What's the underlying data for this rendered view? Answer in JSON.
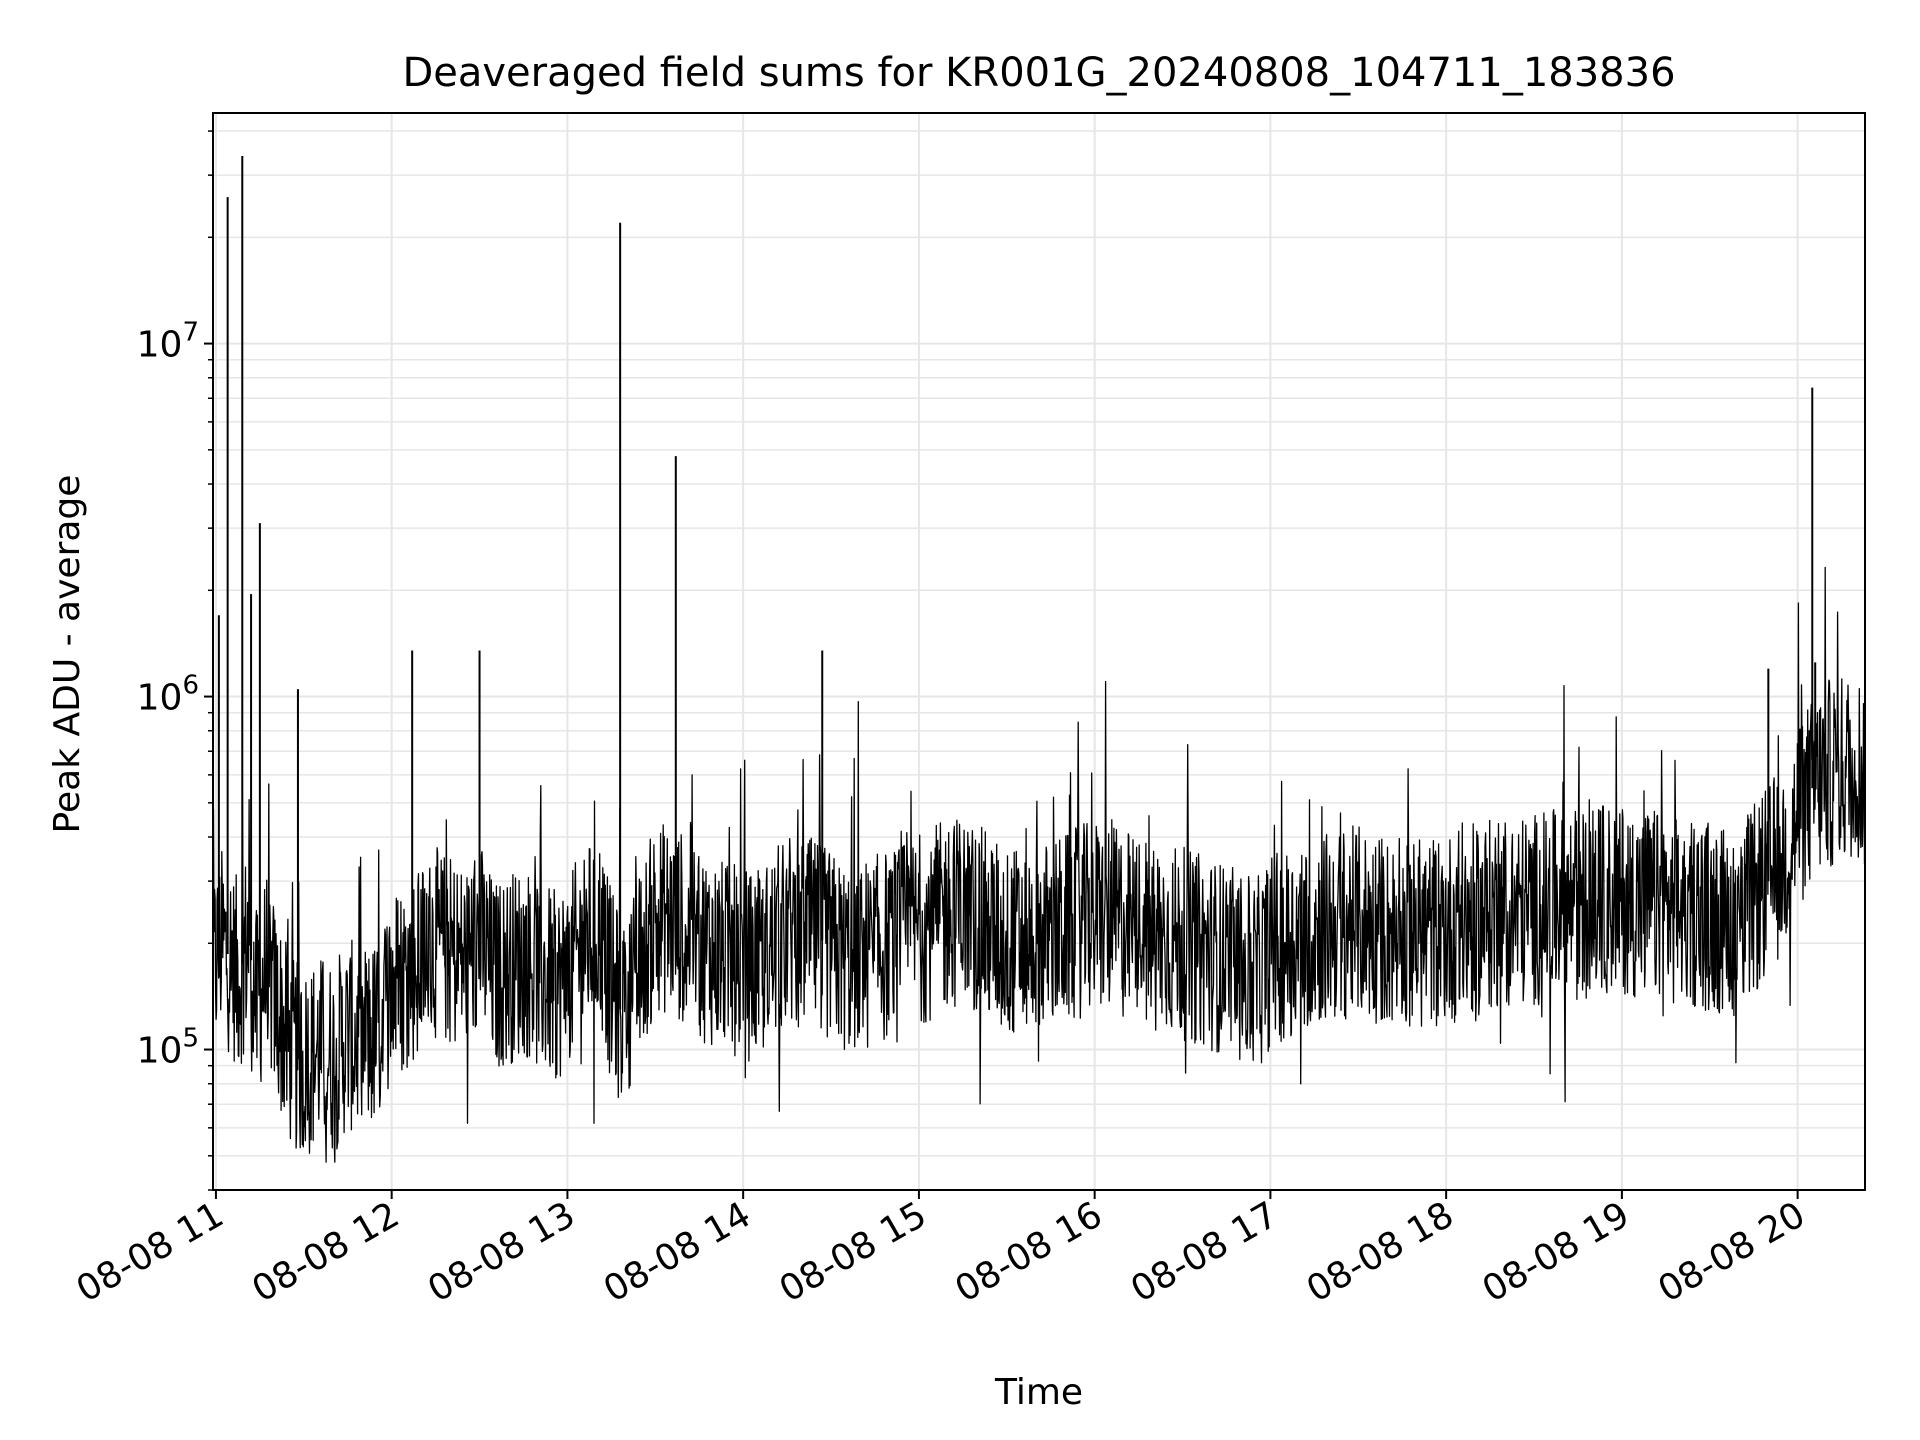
{
  "chart_data": {
    "type": "line",
    "title": "Deaveraged field sums for KR001G_20240808_104711_183836",
    "xlabel": "Time",
    "ylabel": "Peak ADU - average",
    "yscale": "log",
    "ylim": [
      40000,
      45000000
    ],
    "xlim": [
      "2024-08-08 10:59",
      "2024-08-08 20:23"
    ],
    "grid": true,
    "minor_grid": true,
    "line_color": "#000000",
    "grid_color": "#e6e6e6",
    "x_ticks": [
      "08-08 11",
      "08-08 12",
      "08-08 13",
      "08-08 14",
      "08-08 15",
      "08-08 16",
      "08-08 17",
      "08-08 18",
      "08-08 19",
      "08-08 20"
    ],
    "x_tick_times": [
      "2024-08-08 11:00",
      "2024-08-08 12:00",
      "2024-08-08 13:00",
      "2024-08-08 14:00",
      "2024-08-08 15:00",
      "2024-08-08 16:00",
      "2024-08-08 17:00",
      "2024-08-08 18:00",
      "2024-08-08 19:00",
      "2024-08-08 20:00"
    ],
    "y_ticks": [
      {
        "base": "10",
        "exp": "5",
        "value": 100000
      },
      {
        "base": "10",
        "exp": "6",
        "value": 1000000
      },
      {
        "base": "10",
        "exp": "7",
        "value": 10000000
      }
    ],
    "series": [
      {
        "x": [
          "2024-08-08 10:59",
          "2024-08-08 11:02",
          "2024-08-08 11:05",
          "2024-08-08 11:08",
          "2024-08-08 11:11",
          "2024-08-08 11:14",
          "2024-08-08 11:17",
          "2024-08-08 11:20",
          "2024-08-08 11:25",
          "2024-08-08 11:30",
          "2024-08-08 11:35",
          "2024-08-08 11:40",
          "2024-08-08 11:45",
          "2024-08-08 11:50",
          "2024-08-08 11:55",
          "2024-08-08 12:00",
          "2024-08-08 12:07",
          "2024-08-08 12:15",
          "2024-08-08 12:25",
          "2024-08-08 12:30",
          "2024-08-08 12:35",
          "2024-08-08 12:45",
          "2024-08-08 12:55",
          "2024-08-08 13:00",
          "2024-08-08 13:05",
          "2024-08-08 13:11",
          "2024-08-08 13:15",
          "2024-08-08 13:18",
          "2024-08-08 13:25",
          "2024-08-08 13:30",
          "2024-08-08 13:37",
          "2024-08-08 13:45",
          "2024-08-08 13:55",
          "2024-08-08 14:05",
          "2024-08-08 14:15",
          "2024-08-08 14:25",
          "2024-08-08 14:35",
          "2024-08-08 14:45",
          "2024-08-08 15:00",
          "2024-08-08 15:15",
          "2024-08-08 15:30",
          "2024-08-08 15:45",
          "2024-08-08 16:00",
          "2024-08-08 16:15",
          "2024-08-08 16:30",
          "2024-08-08 16:45",
          "2024-08-08 16:55",
          "2024-08-08 17:00",
          "2024-08-08 17:15",
          "2024-08-08 17:30",
          "2024-08-08 17:45",
          "2024-08-08 18:00",
          "2024-08-08 18:15",
          "2024-08-08 18:30",
          "2024-08-08 18:45",
          "2024-08-08 19:00",
          "2024-08-08 19:15",
          "2024-08-08 19:30",
          "2024-08-08 19:40",
          "2024-08-08 19:50",
          "2024-08-08 19:55",
          "2024-08-08 20:00",
          "2024-08-08 20:05",
          "2024-08-08 20:10",
          "2024-08-08 20:15",
          "2024-08-08 20:20",
          "2024-08-08 20:23"
        ],
        "y": [
          170000,
          200000,
          180000,
          160000,
          210000,
          130000,
          170000,
          140000,
          100000,
          90000,
          100000,
          95000,
          110000,
          105000,
          110000,
          150000,
          170000,
          200000,
          180000,
          210000,
          160000,
          180000,
          150000,
          160000,
          200000,
          220000,
          150000,
          130000,
          170000,
          240000,
          230000,
          200000,
          180000,
          170000,
          220000,
          210000,
          180000,
          190000,
          220000,
          250000,
          200000,
          210000,
          240000,
          220000,
          200000,
          180000,
          160000,
          190000,
          220000,
          230000,
          210000,
          220000,
          240000,
          250000,
          260000,
          270000,
          250000,
          240000,
          230000,
          300000,
          350000,
          450000,
          550000,
          600000,
          620000,
          650000,
          600000
        ]
      }
    ],
    "spikes": [
      {
        "x": "2024-08-08 11:01",
        "y": 1700000
      },
      {
        "x": "2024-08-08 11:04",
        "y": 26000000
      },
      {
        "x": "2024-08-08 11:09",
        "y": 34000000
      },
      {
        "x": "2024-08-08 11:12",
        "y": 1950000
      },
      {
        "x": "2024-08-08 11:15",
        "y": 3100000
      },
      {
        "x": "2024-08-08 11:28",
        "y": 1050000
      },
      {
        "x": "2024-08-08 12:07",
        "y": 1350000
      },
      {
        "x": "2024-08-08 12:30",
        "y": 1350000
      },
      {
        "x": "2024-08-08 13:18",
        "y": 22000000
      },
      {
        "x": "2024-08-08 13:37",
        "y": 4800000
      },
      {
        "x": "2024-08-08 14:27",
        "y": 1350000
      },
      {
        "x": "2024-08-08 19:50",
        "y": 1200000
      },
      {
        "x": "2024-08-08 20:05",
        "y": 7500000
      },
      {
        "x": "2024-08-08 20:06",
        "y": 1250000
      }
    ]
  }
}
